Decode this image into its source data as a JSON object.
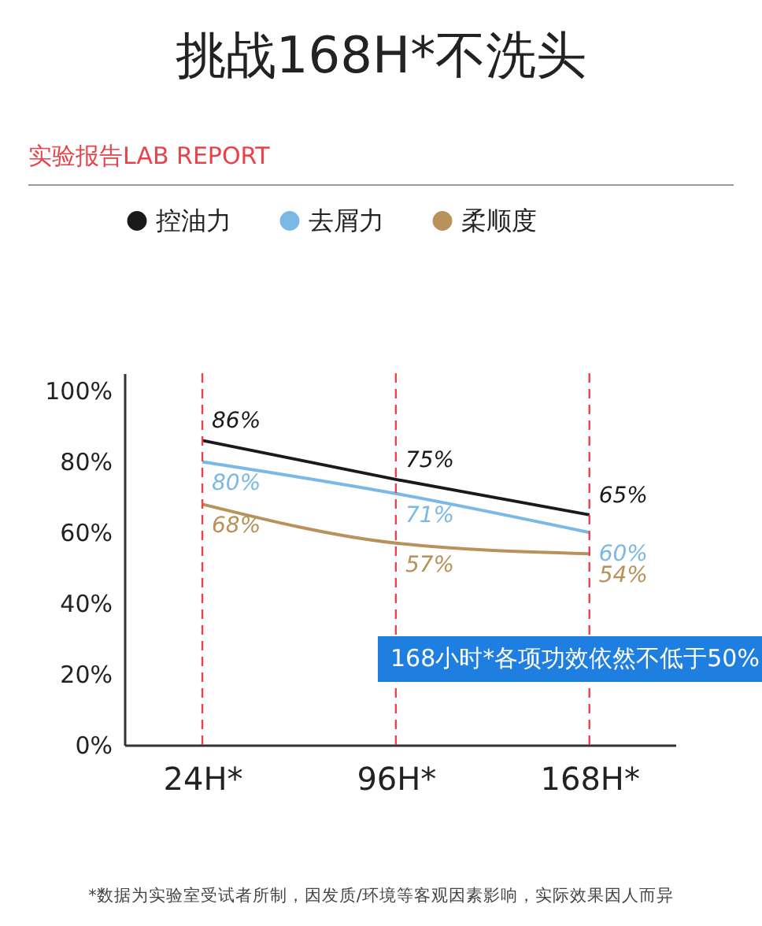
{
  "chart_data": {
    "type": "line",
    "title": "挑战168H*不洗头",
    "subtitle": "实验报告LAB REPORT",
    "x": [
      24,
      96,
      168
    ],
    "xlim": [
      -5,
      200
    ],
    "xticks": [
      {
        "value": 24,
        "label": "24H*"
      },
      {
        "value": 96,
        "label": "96H*"
      },
      {
        "value": 168,
        "label": "168H*"
      }
    ],
    "ylim": [
      0,
      105
    ],
    "yticks": [
      {
        "value": 0,
        "label": "0%"
      },
      {
        "value": 20,
        "label": "20%"
      },
      {
        "value": 40,
        "label": "40%"
      },
      {
        "value": 60,
        "label": "60%"
      },
      {
        "value": 80,
        "label": "80%"
      },
      {
        "value": 100,
        "label": "100%"
      }
    ],
    "series": [
      {
        "name": "控油力",
        "color": "#1a1a1a",
        "values": [
          86,
          75,
          65
        ],
        "value_labels": [
          "86%",
          "75%",
          "65%"
        ]
      },
      {
        "name": "去屑力",
        "color": "#7ab8e6",
        "values": [
          80,
          71,
          60
        ],
        "value_labels": [
          "80%",
          "71%",
          "60%"
        ]
      },
      {
        "name": "柔顺度",
        "color": "#b8925a",
        "values": [
          68,
          57,
          54
        ],
        "value_labels": [
          "68%",
          "57%",
          "54%"
        ]
      }
    ],
    "ref_lines": [
      {
        "axis": "x",
        "value": 24,
        "color": "#e8424a",
        "line_style": "dashed"
      },
      {
        "axis": "x",
        "value": 96,
        "color": "#e8424a",
        "line_style": "dashed"
      },
      {
        "axis": "x",
        "value": 168,
        "color": "#e8424a",
        "line_style": "dashed"
      }
    ],
    "legend": "top left",
    "marker": "none",
    "line_style": "solid",
    "annotations": [
      "168小时*各项功效依然不低于50%",
      "*数据为实验室受试者所制，因发质/环境等客观因素影响，实际效果因人而异"
    ]
  }
}
